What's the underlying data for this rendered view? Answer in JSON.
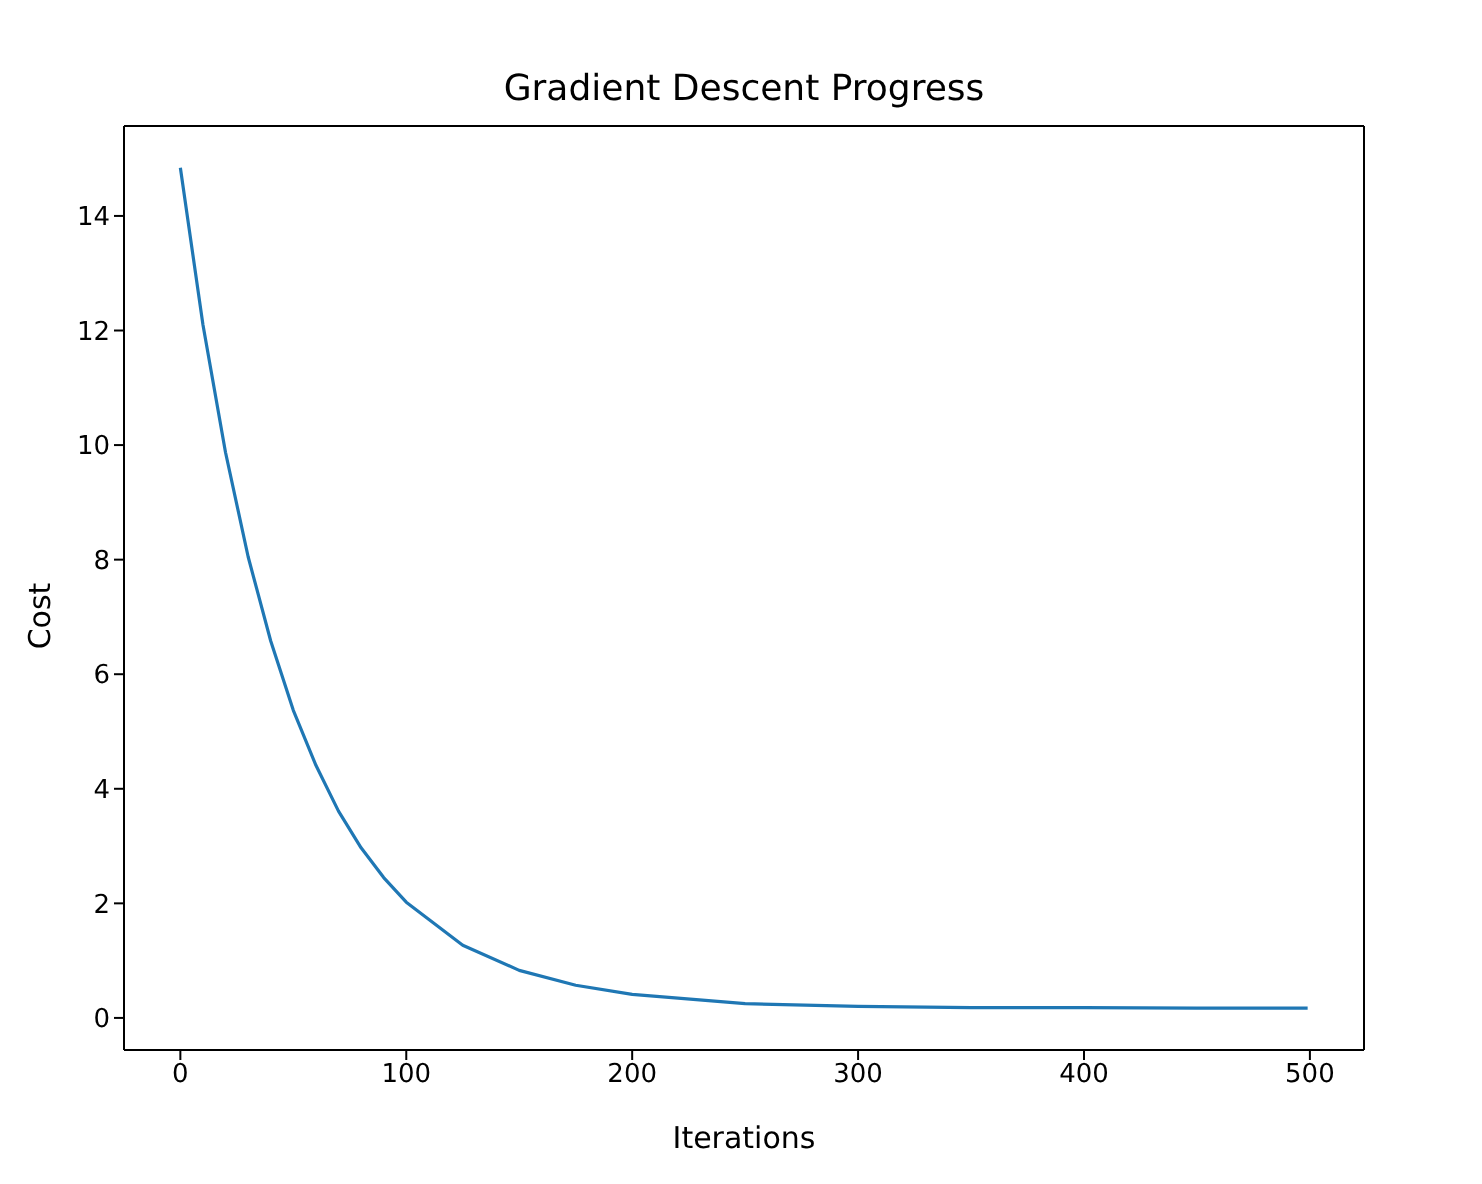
{
  "chart_data": {
    "type": "line",
    "title": "Gradient Descent Progress",
    "xlabel": "Iterations",
    "ylabel": "Cost",
    "x": [
      0,
      10,
      20,
      30,
      40,
      50,
      60,
      70,
      80,
      90,
      100,
      125,
      150,
      175,
      200,
      250,
      300,
      350,
      400,
      450,
      499
    ],
    "series": [
      {
        "color": "#1f77b4",
        "values": [
          14.84,
          12.1,
          9.87,
          8.05,
          6.58,
          5.37,
          4.41,
          3.61,
          2.97,
          2.45,
          2.02,
          1.27,
          0.83,
          0.57,
          0.41,
          0.25,
          0.2,
          0.18,
          0.18,
          0.17,
          0.17
        ]
      }
    ],
    "xlim": [
      -24.95,
      523.95
    ],
    "ylim": [
      -0.56,
      15.57
    ],
    "xticks": [
      0,
      100,
      200,
      300,
      400,
      500
    ],
    "yticks": [
      0,
      2,
      4,
      6,
      8,
      10,
      12,
      14
    ],
    "grid": false,
    "legend": false,
    "marker": "none",
    "line_style": "solid"
  }
}
